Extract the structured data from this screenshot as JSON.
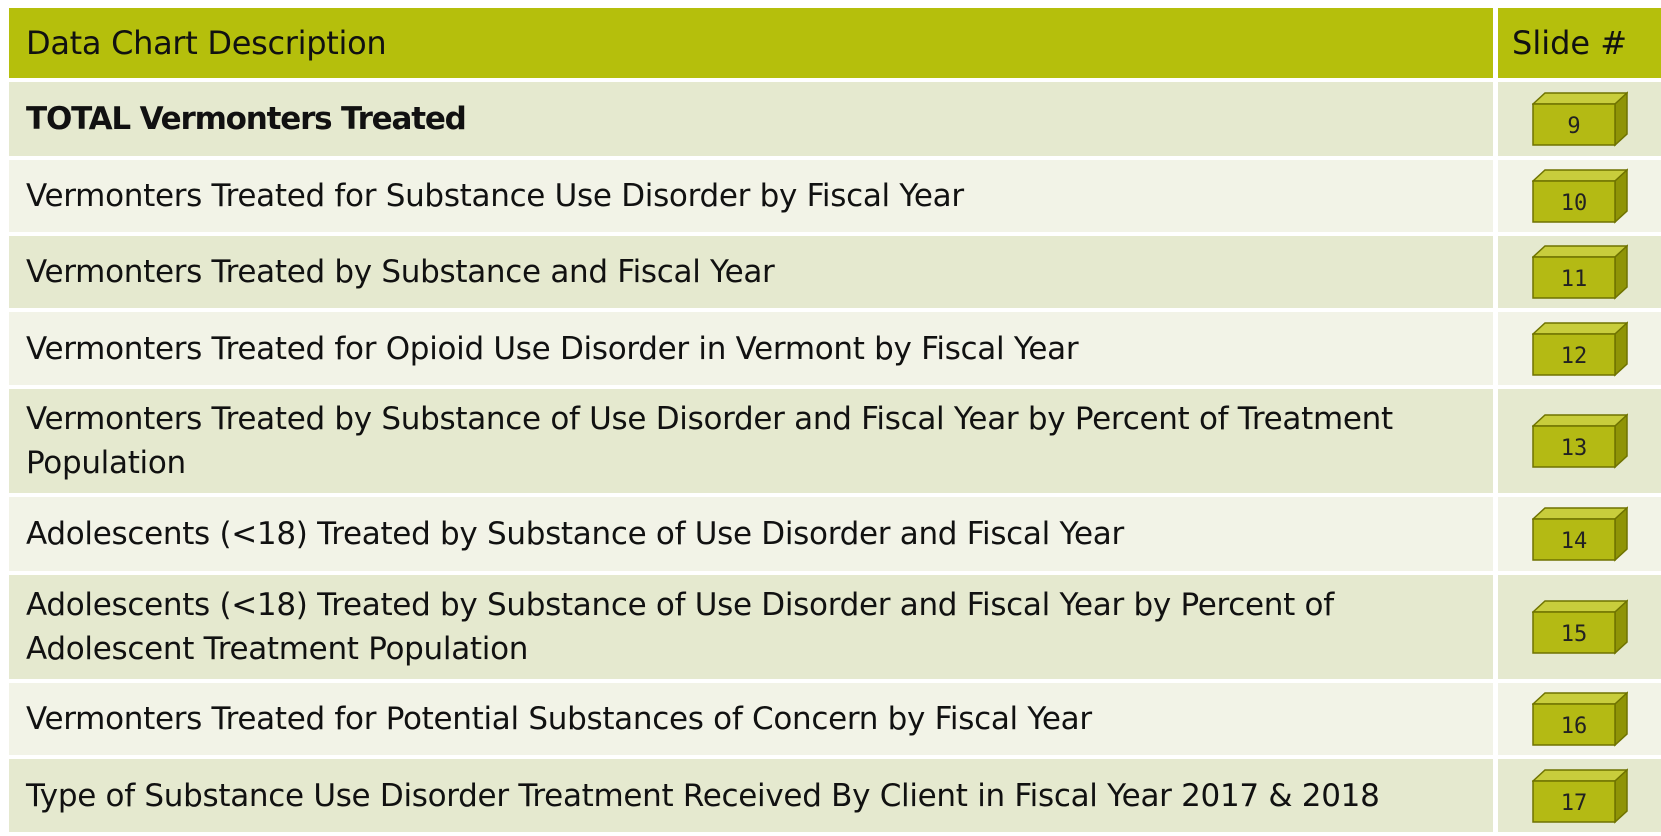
{
  "header": {
    "description": "Data Chart Description",
    "slide": "Slide #"
  },
  "table": {
    "rows": [
      [
        "TOTAL Vermonters Treated",
        9
      ],
      [
        "Vermonters Treated for Substance Use Disorder by Fiscal Year",
        10
      ],
      [
        "Vermonters Treated by Substance and Fiscal Year",
        11
      ],
      [
        "Vermonters Treated for Opioid Use Disorder in Vermont by Fiscal Year",
        12
      ],
      [
        "Vermonters Treated by Substance of Use Disorder and Fiscal Year by Percent of Treatment Population",
        13
      ],
      [
        "Adolescents (<18) Treated by Substance of Use Disorder and Fiscal Year",
        14
      ],
      [
        "Adolescents (<18) Treated by Substance of Use Disorder and Fiscal Year by Percent of Adolescent Treatment Population",
        15
      ],
      [
        "Vermonters Treated for Potential Substances of Concern by Fiscal Year",
        16
      ],
      [
        "Type of Substance Use Disorder Treatment Received By Client in Fiscal Year 2017 & 2018",
        17
      ]
    ]
  }
}
